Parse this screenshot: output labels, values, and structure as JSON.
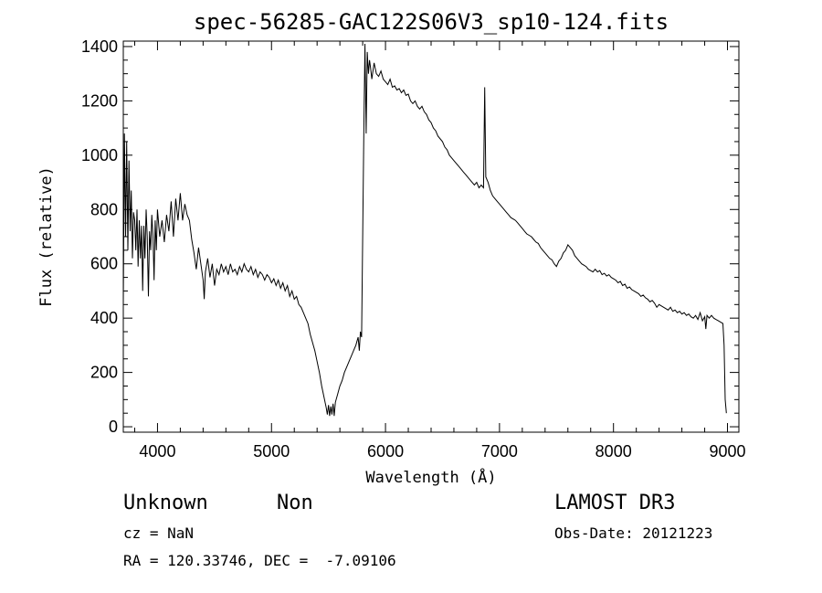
{
  "chart_data": {
    "type": "line",
    "title": "spec-56285-GAC122S06V3_sp10-124.fits",
    "xlabel": "Wavelength (Å)",
    "ylabel": "Flux (relative)",
    "xlim": [
      3700,
      9100
    ],
    "ylim": [
      -20,
      1420
    ],
    "xticks": [
      4000,
      5000,
      6000,
      7000,
      8000,
      9000
    ],
    "yticks": [
      0,
      200,
      400,
      600,
      800,
      1000,
      1200,
      1400
    ],
    "series": [
      {
        "name": "spectrum",
        "points": [
          [
            3700,
            450
          ],
          [
            3710,
            1080
          ],
          [
            3720,
            700
          ],
          [
            3730,
            1050
          ],
          [
            3740,
            650
          ],
          [
            3750,
            980
          ],
          [
            3760,
            720
          ],
          [
            3770,
            870
          ],
          [
            3780,
            620
          ],
          [
            3790,
            790
          ],
          [
            3800,
            760
          ],
          [
            3810,
            650
          ],
          [
            3820,
            800
          ],
          [
            3830,
            590
          ],
          [
            3840,
            760
          ],
          [
            3850,
            620
          ],
          [
            3860,
            740
          ],
          [
            3870,
            500
          ],
          [
            3880,
            740
          ],
          [
            3890,
            620
          ],
          [
            3900,
            800
          ],
          [
            3910,
            700
          ],
          [
            3920,
            480
          ],
          [
            3930,
            720
          ],
          [
            3940,
            650
          ],
          [
            3950,
            780
          ],
          [
            3960,
            700
          ],
          [
            3970,
            540
          ],
          [
            3980,
            760
          ],
          [
            3990,
            650
          ],
          [
            4000,
            800
          ],
          [
            4020,
            700
          ],
          [
            4040,
            760
          ],
          [
            4060,
            680
          ],
          [
            4080,
            780
          ],
          [
            4100,
            720
          ],
          [
            4120,
            830
          ],
          [
            4140,
            700
          ],
          [
            4160,
            840
          ],
          [
            4180,
            760
          ],
          [
            4200,
            860
          ],
          [
            4220,
            760
          ],
          [
            4240,
            820
          ],
          [
            4260,
            780
          ],
          [
            4280,
            760
          ],
          [
            4300,
            690
          ],
          [
            4320,
            640
          ],
          [
            4340,
            580
          ],
          [
            4360,
            660
          ],
          [
            4380,
            600
          ],
          [
            4400,
            540
          ],
          [
            4410,
            470
          ],
          [
            4420,
            570
          ],
          [
            4440,
            620
          ],
          [
            4460,
            550
          ],
          [
            4480,
            600
          ],
          [
            4500,
            520
          ],
          [
            4520,
            580
          ],
          [
            4540,
            560
          ],
          [
            4560,
            600
          ],
          [
            4580,
            570
          ],
          [
            4600,
            590
          ],
          [
            4620,
            560
          ],
          [
            4640,
            600
          ],
          [
            4660,
            570
          ],
          [
            4680,
            580
          ],
          [
            4700,
            560
          ],
          [
            4720,
            590
          ],
          [
            4740,
            570
          ],
          [
            4760,
            600
          ],
          [
            4780,
            580
          ],
          [
            4800,
            570
          ],
          [
            4820,
            590
          ],
          [
            4840,
            560
          ],
          [
            4860,
            580
          ],
          [
            4880,
            550
          ],
          [
            4900,
            570
          ],
          [
            4920,
            560
          ],
          [
            4940,
            540
          ],
          [
            4960,
            560
          ],
          [
            4980,
            550
          ],
          [
            5000,
            530
          ],
          [
            5020,
            545
          ],
          [
            5040,
            520
          ],
          [
            5060,
            540
          ],
          [
            5080,
            510
          ],
          [
            5100,
            530
          ],
          [
            5120,
            500
          ],
          [
            5140,
            520
          ],
          [
            5160,
            480
          ],
          [
            5180,
            500
          ],
          [
            5200,
            470
          ],
          [
            5220,
            480
          ],
          [
            5240,
            450
          ],
          [
            5260,
            440
          ],
          [
            5280,
            420
          ],
          [
            5300,
            400
          ],
          [
            5320,
            380
          ],
          [
            5340,
            340
          ],
          [
            5360,
            310
          ],
          [
            5380,
            280
          ],
          [
            5400,
            240
          ],
          [
            5420,
            200
          ],
          [
            5440,
            150
          ],
          [
            5460,
            110
          ],
          [
            5480,
            70
          ],
          [
            5490,
            45
          ],
          [
            5500,
            80
          ],
          [
            5510,
            40
          ],
          [
            5520,
            75
          ],
          [
            5530,
            45
          ],
          [
            5540,
            85
          ],
          [
            5550,
            40
          ],
          [
            5560,
            90
          ],
          [
            5580,
            120
          ],
          [
            5600,
            150
          ],
          [
            5620,
            170
          ],
          [
            5640,
            200
          ],
          [
            5660,
            220
          ],
          [
            5680,
            240
          ],
          [
            5700,
            260
          ],
          [
            5720,
            280
          ],
          [
            5740,
            300
          ],
          [
            5760,
            330
          ],
          [
            5770,
            280
          ],
          [
            5780,
            350
          ],
          [
            5790,
            330
          ],
          [
            5800,
            700
          ],
          [
            5810,
            1100
          ],
          [
            5820,
            1410
          ],
          [
            5830,
            1080
          ],
          [
            5840,
            1380
          ],
          [
            5850,
            1300
          ],
          [
            5860,
            1350
          ],
          [
            5870,
            1320
          ],
          [
            5880,
            1280
          ],
          [
            5900,
            1340
          ],
          [
            5920,
            1300
          ],
          [
            5940,
            1290
          ],
          [
            5960,
            1310
          ],
          [
            5980,
            1280
          ],
          [
            6000,
            1270
          ],
          [
            6020,
            1260
          ],
          [
            6040,
            1280
          ],
          [
            6060,
            1250
          ],
          [
            6080,
            1255
          ],
          [
            6100,
            1240
          ],
          [
            6120,
            1245
          ],
          [
            6140,
            1230
          ],
          [
            6160,
            1240
          ],
          [
            6180,
            1220
          ],
          [
            6200,
            1225
          ],
          [
            6220,
            1200
          ],
          [
            6240,
            1190
          ],
          [
            6260,
            1200
          ],
          [
            6280,
            1180
          ],
          [
            6300,
            1170
          ],
          [
            6320,
            1180
          ],
          [
            6340,
            1160
          ],
          [
            6360,
            1150
          ],
          [
            6380,
            1130
          ],
          [
            6400,
            1120
          ],
          [
            6420,
            1100
          ],
          [
            6440,
            1090
          ],
          [
            6460,
            1070
          ],
          [
            6480,
            1060
          ],
          [
            6500,
            1050
          ],
          [
            6520,
            1030
          ],
          [
            6540,
            1020
          ],
          [
            6560,
            1000
          ],
          [
            6580,
            990
          ],
          [
            6600,
            980
          ],
          [
            6620,
            970
          ],
          [
            6640,
            960
          ],
          [
            6660,
            950
          ],
          [
            6680,
            940
          ],
          [
            6700,
            930
          ],
          [
            6720,
            920
          ],
          [
            6740,
            910
          ],
          [
            6760,
            900
          ],
          [
            6780,
            890
          ],
          [
            6800,
            900
          ],
          [
            6820,
            880
          ],
          [
            6840,
            890
          ],
          [
            6860,
            880
          ],
          [
            6870,
            1250
          ],
          [
            6880,
            920
          ],
          [
            6900,
            900
          ],
          [
            6920,
            870
          ],
          [
            6940,
            850
          ],
          [
            6960,
            840
          ],
          [
            6980,
            830
          ],
          [
            7000,
            820
          ],
          [
            7020,
            810
          ],
          [
            7040,
            800
          ],
          [
            7060,
            790
          ],
          [
            7080,
            780
          ],
          [
            7100,
            770
          ],
          [
            7120,
            765
          ],
          [
            7140,
            760
          ],
          [
            7160,
            750
          ],
          [
            7180,
            740
          ],
          [
            7200,
            730
          ],
          [
            7220,
            720
          ],
          [
            7240,
            710
          ],
          [
            7260,
            705
          ],
          [
            7280,
            700
          ],
          [
            7300,
            690
          ],
          [
            7320,
            680
          ],
          [
            7340,
            675
          ],
          [
            7360,
            660
          ],
          [
            7380,
            650
          ],
          [
            7400,
            640
          ],
          [
            7420,
            630
          ],
          [
            7440,
            620
          ],
          [
            7460,
            615
          ],
          [
            7480,
            600
          ],
          [
            7500,
            590
          ],
          [
            7520,
            610
          ],
          [
            7540,
            620
          ],
          [
            7560,
            640
          ],
          [
            7580,
            650
          ],
          [
            7600,
            670
          ],
          [
            7620,
            660
          ],
          [
            7640,
            650
          ],
          [
            7660,
            630
          ],
          [
            7680,
            620
          ],
          [
            7700,
            610
          ],
          [
            7720,
            600
          ],
          [
            7740,
            595
          ],
          [
            7760,
            590
          ],
          [
            7780,
            580
          ],
          [
            7800,
            575
          ],
          [
            7820,
            570
          ],
          [
            7840,
            580
          ],
          [
            7860,
            570
          ],
          [
            7880,
            575
          ],
          [
            7900,
            560
          ],
          [
            7920,
            565
          ],
          [
            7940,
            555
          ],
          [
            7960,
            560
          ],
          [
            7980,
            550
          ],
          [
            8000,
            545
          ],
          [
            8020,
            540
          ],
          [
            8040,
            530
          ],
          [
            8060,
            535
          ],
          [
            8080,
            520
          ],
          [
            8100,
            525
          ],
          [
            8120,
            510
          ],
          [
            8140,
            515
          ],
          [
            8160,
            505
          ],
          [
            8180,
            500
          ],
          [
            8200,
            495
          ],
          [
            8220,
            490
          ],
          [
            8240,
            480
          ],
          [
            8260,
            485
          ],
          [
            8280,
            475
          ],
          [
            8300,
            470
          ],
          [
            8320,
            460
          ],
          [
            8340,
            465
          ],
          [
            8360,
            455
          ],
          [
            8380,
            440
          ],
          [
            8400,
            450
          ],
          [
            8420,
            445
          ],
          [
            8440,
            440
          ],
          [
            8460,
            435
          ],
          [
            8480,
            430
          ],
          [
            8500,
            440
          ],
          [
            8520,
            425
          ],
          [
            8540,
            430
          ],
          [
            8560,
            420
          ],
          [
            8580,
            425
          ],
          [
            8600,
            415
          ],
          [
            8620,
            420
          ],
          [
            8640,
            410
          ],
          [
            8660,
            415
          ],
          [
            8680,
            405
          ],
          [
            8700,
            400
          ],
          [
            8720,
            410
          ],
          [
            8740,
            395
          ],
          [
            8760,
            420
          ],
          [
            8780,
            390
          ],
          [
            8800,
            405
          ],
          [
            8810,
            360
          ],
          [
            8820,
            410
          ],
          [
            8840,
            400
          ],
          [
            8860,
            410
          ],
          [
            8880,
            400
          ],
          [
            8900,
            395
          ],
          [
            8920,
            390
          ],
          [
            8940,
            385
          ],
          [
            8960,
            380
          ],
          [
            8970,
            300
          ],
          [
            8980,
            100
          ],
          [
            8990,
            50
          ]
        ]
      }
    ]
  },
  "info": {
    "object_class": "Unknown",
    "subclass": "Non",
    "survey": "LAMOST DR3",
    "cz_line": "cz = NaN",
    "obs_date_line": "Obs-Date: 20121223",
    "coords_line": "RA = 120.33746, DEC =  -7.09106"
  },
  "colors": {
    "line": "#000000",
    "background": "#ffffff"
  }
}
